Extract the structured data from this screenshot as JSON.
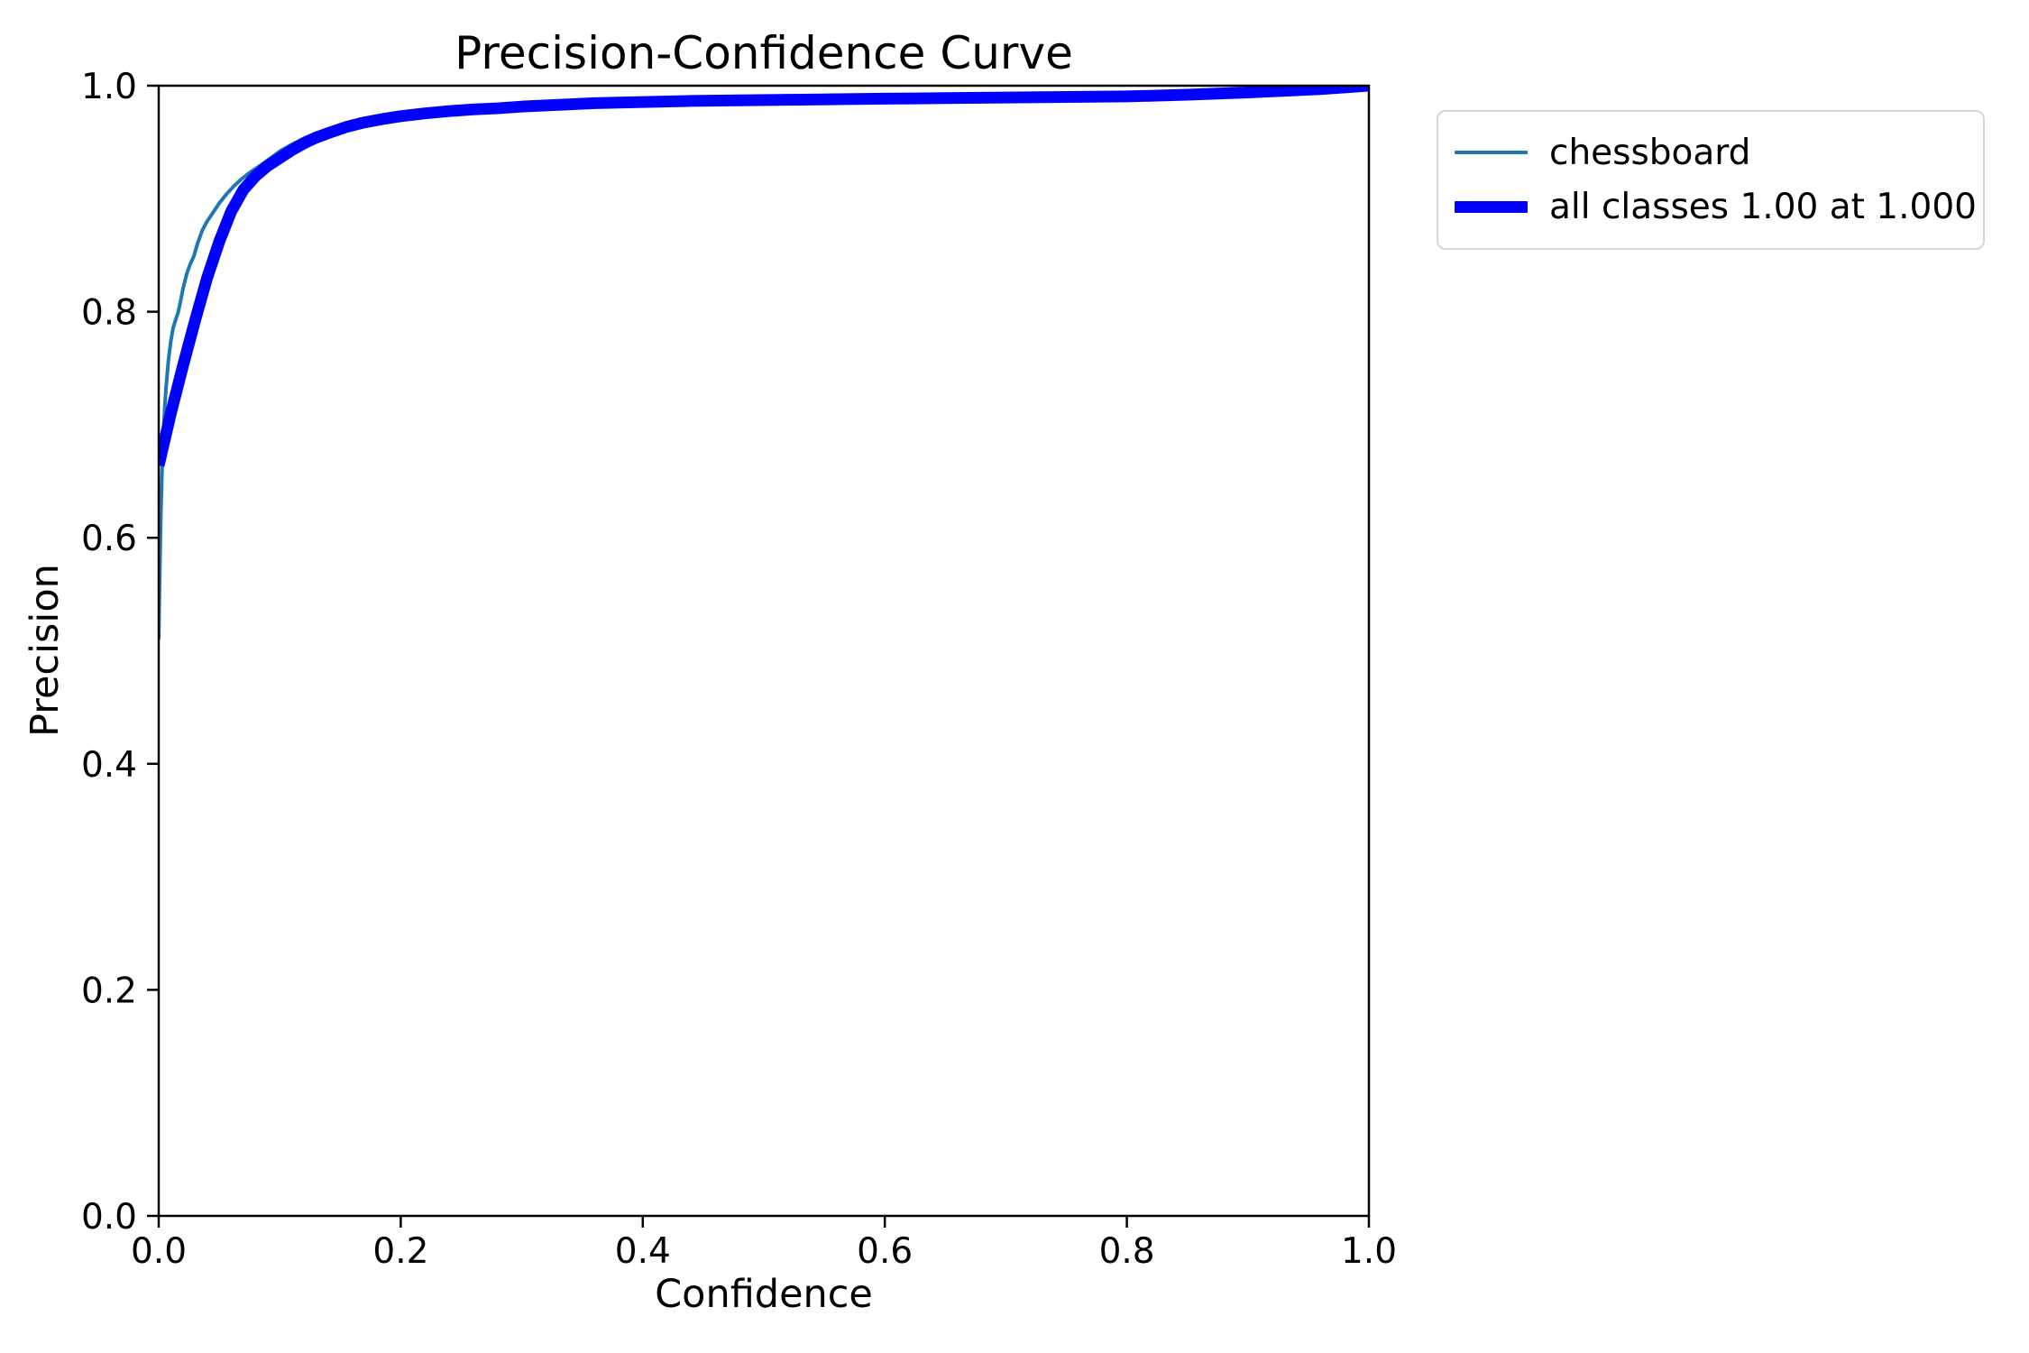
{
  "figure": {
    "background": "#ffffff",
    "spine_color": "#000000",
    "tick_color": "#000000",
    "text_color": "#000000"
  },
  "chart_data": {
    "type": "line",
    "title": "Precision-Confidence Curve",
    "xlabel": "Confidence",
    "ylabel": "Precision",
    "xlim": [
      0.0,
      1.0
    ],
    "ylim": [
      0.0,
      1.0
    ],
    "xticks": [
      0.0,
      0.2,
      0.4,
      0.6,
      0.8,
      1.0
    ],
    "yticks": [
      0.0,
      0.2,
      0.4,
      0.6,
      0.8,
      1.0
    ],
    "xtick_labels": [
      "0.0",
      "0.2",
      "0.4",
      "0.6",
      "0.8",
      "1.0"
    ],
    "ytick_labels": [
      "0.0",
      "0.2",
      "0.4",
      "0.6",
      "0.8",
      "1.0"
    ],
    "grid": false,
    "legend_position": "upper-right-outside",
    "series": [
      {
        "name": "chessboard",
        "color": "#1f77b4",
        "linewidth": 4,
        "x": [
          0.0,
          0.0005,
          0.001,
          0.0015,
          0.002,
          0.003,
          0.004,
          0.005,
          0.006,
          0.008,
          0.01,
          0.012,
          0.014,
          0.016,
          0.018,
          0.02,
          0.023,
          0.026,
          0.029,
          0.032,
          0.036,
          0.04,
          0.045,
          0.05,
          0.056,
          0.062,
          0.068,
          0.075,
          0.082,
          0.09,
          0.1,
          0.11,
          0.12,
          0.13,
          0.14,
          0.155,
          0.17,
          0.185,
          0.2,
          0.22,
          0.24,
          0.26,
          0.28,
          0.3,
          0.33,
          0.36,
          0.4,
          0.44,
          0.48,
          0.52,
          0.56,
          0.6,
          0.65,
          0.7,
          0.75,
          0.8,
          0.85,
          0.9,
          0.93,
          0.96,
          0.98,
          1.0
        ],
        "y": [
          0.51,
          0.545,
          0.575,
          0.605,
          0.63,
          0.668,
          0.695,
          0.716,
          0.732,
          0.757,
          0.774,
          0.786,
          0.793,
          0.799,
          0.809,
          0.82,
          0.833,
          0.842,
          0.849,
          0.86,
          0.872,
          0.88,
          0.888,
          0.896,
          0.904,
          0.911,
          0.917,
          0.923,
          0.928,
          0.934,
          0.942,
          0.948,
          0.9535,
          0.958,
          0.9615,
          0.9665,
          0.97,
          0.9725,
          0.975,
          0.977,
          0.979,
          0.9805,
          0.9815,
          0.9825,
          0.9865,
          0.9855,
          0.986,
          0.987,
          0.9875,
          0.988,
          0.9885,
          0.989,
          0.9895,
          0.99,
          0.9905,
          0.991,
          0.9925,
          0.9945,
          0.996,
          0.9975,
          0.9985,
          1.0
        ]
      },
      {
        "name": "all classes 1.00 at 1.000",
        "color": "#0000ff",
        "linewidth": 13,
        "x": [
          0.0,
          0.01,
          0.02,
          0.03,
          0.04,
          0.05,
          0.06,
          0.07,
          0.08,
          0.09,
          0.1,
          0.11,
          0.12,
          0.13,
          0.14,
          0.155,
          0.17,
          0.185,
          0.2,
          0.22,
          0.24,
          0.26,
          0.28,
          0.3,
          0.33,
          0.36,
          0.4,
          0.44,
          0.48,
          0.52,
          0.56,
          0.6,
          0.65,
          0.7,
          0.75,
          0.8,
          0.85,
          0.9,
          0.93,
          0.96,
          0.98,
          1.0
        ],
        "y": [
          0.664,
          0.71,
          0.752,
          0.792,
          0.83,
          0.862,
          0.889,
          0.908,
          0.92,
          0.929,
          0.936,
          0.943,
          0.949,
          0.954,
          0.958,
          0.9635,
          0.9675,
          0.9705,
          0.973,
          0.9755,
          0.9775,
          0.979,
          0.98,
          0.9815,
          0.983,
          0.9845,
          0.9855,
          0.9865,
          0.987,
          0.9875,
          0.988,
          0.9885,
          0.989,
          0.9895,
          0.99,
          0.9905,
          0.992,
          0.994,
          0.9955,
          0.997,
          0.9985,
          1.0
        ]
      }
    ]
  },
  "legend": {
    "entries": [
      {
        "label": "chessboard",
        "color": "#1f77b4",
        "thickness": "thin"
      },
      {
        "label": "all classes 1.00 at 1.000",
        "color": "#0000ff",
        "thickness": "thick"
      }
    ]
  }
}
